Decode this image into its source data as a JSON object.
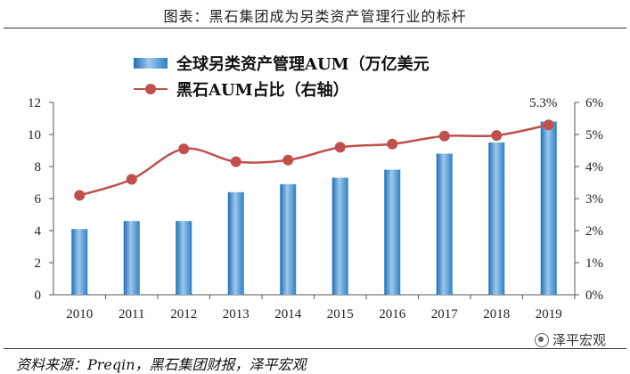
{
  "header": {
    "title": "图表：黑石集团成为另类资产管理行业的标杆"
  },
  "footer": {
    "source": "资料来源：Preqin，黑石集团财报，泽平宏观",
    "watermark": "泽平宏观"
  },
  "colors": {
    "bar": "#2f7fc4",
    "bar_light": "#9cc8ee",
    "line": "#c0504d"
  },
  "chart_data": {
    "type": "bar",
    "title": "图表：黑石集团成为另类资产管理行业的标杆",
    "categories": [
      "2010",
      "2011",
      "2012",
      "2013",
      "2014",
      "2015",
      "2016",
      "2017",
      "2018",
      "2019"
    ],
    "series": [
      {
        "name": "全球另类资产管理AUM（万亿美元",
        "type": "bar",
        "axis": "left",
        "values": [
          4.1,
          4.6,
          4.6,
          6.4,
          6.9,
          7.3,
          7.8,
          8.8,
          9.5,
          10.8
        ]
      },
      {
        "name": "黑石AUM占比（右轴）",
        "type": "line",
        "axis": "right",
        "values": [
          3.1,
          3.6,
          4.55,
          4.15,
          4.2,
          4.6,
          4.7,
          4.95,
          4.97,
          5.3
        ]
      }
    ],
    "left_axis": {
      "min": 0,
      "max": 12,
      "ticks": [
        "0",
        "2",
        "4",
        "6",
        "8",
        "10",
        "12"
      ]
    },
    "right_axis": {
      "min": 0,
      "max": 6,
      "ticks": [
        "0%",
        "1%",
        "2%",
        "3%",
        "4%",
        "5%",
        "6%"
      ]
    },
    "annotations": [
      {
        "label": "5.3%",
        "series": 1,
        "index": 9
      }
    ],
    "legend_position": "top-left",
    "grid": false
  }
}
